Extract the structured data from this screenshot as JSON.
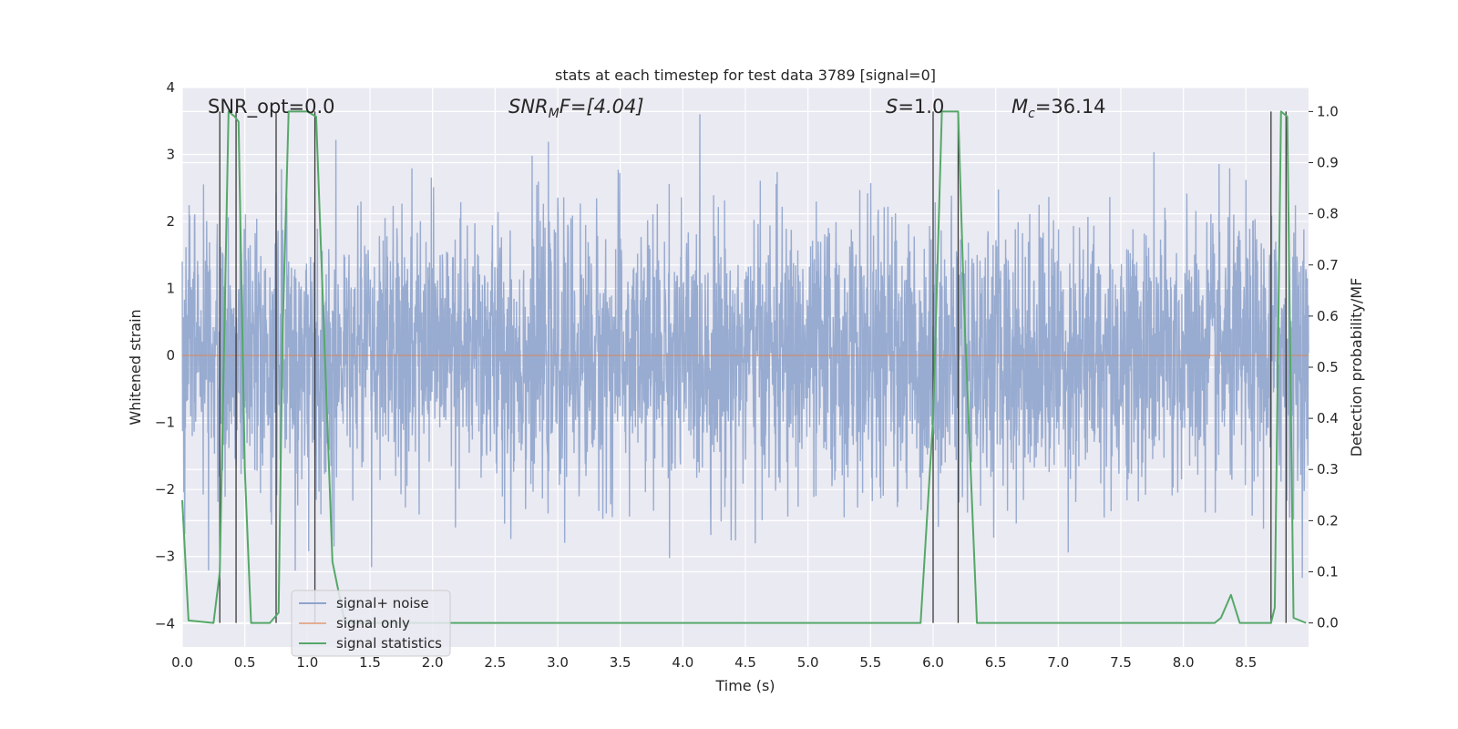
{
  "chart_data": {
    "type": "line",
    "title": "stats at each timestep for test data 3789 [signal=0]",
    "xlabel": "Time (s)",
    "ylabel": "Whitened strain",
    "y2label": "Detection probability/MF",
    "xlim": [
      0.0,
      9.0
    ],
    "ylim": [
      -4.35,
      4.0
    ],
    "y2lim": [
      -0.047,
      1.047
    ],
    "xticks": [
      "0.0",
      "0.5",
      "1.0",
      "1.5",
      "2.0",
      "2.5",
      "3.0",
      "3.5",
      "4.0",
      "4.5",
      "5.0",
      "5.5",
      "6.0",
      "6.5",
      "7.0",
      "7.5",
      "8.0",
      "8.5"
    ],
    "yticks": [
      "−4",
      "−3",
      "−2",
      "−1",
      "0",
      "1",
      "2",
      "3",
      "4"
    ],
    "y2ticks": [
      "0.0",
      "0.1",
      "0.2",
      "0.3",
      "0.4",
      "0.5",
      "0.6",
      "0.7",
      "0.8",
      "0.9",
      "1.0"
    ],
    "annotations": {
      "snr_opt": "SNR_opt=0.0",
      "snr_mf_main": "SNR",
      "snr_mf_sub": "M",
      "snr_mf_rest": "F=[4.04]",
      "s_label": "S",
      "s_value": "=1.0",
      "mc_main": "M",
      "mc_sub": "c",
      "mc_value": "=36.14"
    },
    "legend": {
      "location": "lower-left",
      "entries": [
        "signal+ noise",
        "signal only",
        "signal statistics"
      ]
    },
    "series": [
      {
        "name": "signal+ noise",
        "color": "#8fa4cc",
        "description": "whitened strain noise, approx. std 1.0 spanning roughly -4 to 3.6",
        "noise_std": 1.0,
        "x_range": [
          0.0,
          9.0
        ]
      },
      {
        "name": "signal only",
        "color": "#dd8452",
        "x": [
          0.0,
          9.0
        ],
        "values": [
          0.0,
          0.0
        ]
      },
      {
        "name": "signal statistics",
        "color": "#55a868",
        "axis": "right",
        "x": [
          0.0,
          0.05,
          0.25,
          0.3,
          0.37,
          0.42,
          0.45,
          0.5,
          0.55,
          0.6,
          0.7,
          0.77,
          0.8,
          0.85,
          0.9,
          1.0,
          1.07,
          1.2,
          1.3,
          1.4,
          2.0,
          3.0,
          4.0,
          4.5,
          5.0,
          5.9,
          6.0,
          6.07,
          6.2,
          6.25,
          6.35,
          7.0,
          8.0,
          8.25,
          8.3,
          8.38,
          8.45,
          8.6,
          8.7,
          8.73,
          8.78,
          8.83,
          8.88,
          8.98
        ],
        "values": [
          0.24,
          0.005,
          0.0,
          0.1,
          1.0,
          0.99,
          0.98,
          0.3,
          0.0,
          0.0,
          0.0,
          0.02,
          0.55,
          1.0,
          1.0,
          1.0,
          0.99,
          0.12,
          0.0,
          0.0,
          0.0,
          0.0,
          0.0,
          0.0,
          0.0,
          0.0,
          0.4,
          1.0,
          1.0,
          0.6,
          0.0,
          0.0,
          0.0,
          0.0,
          0.01,
          0.055,
          0.0,
          0.0,
          0.0,
          0.03,
          1.0,
          0.99,
          0.01,
          0.0
        ]
      }
    ],
    "vertical_markers": [
      0.3,
      0.43,
      0.75,
      1.06,
      6.0,
      6.2,
      8.7,
      8.82
    ]
  }
}
